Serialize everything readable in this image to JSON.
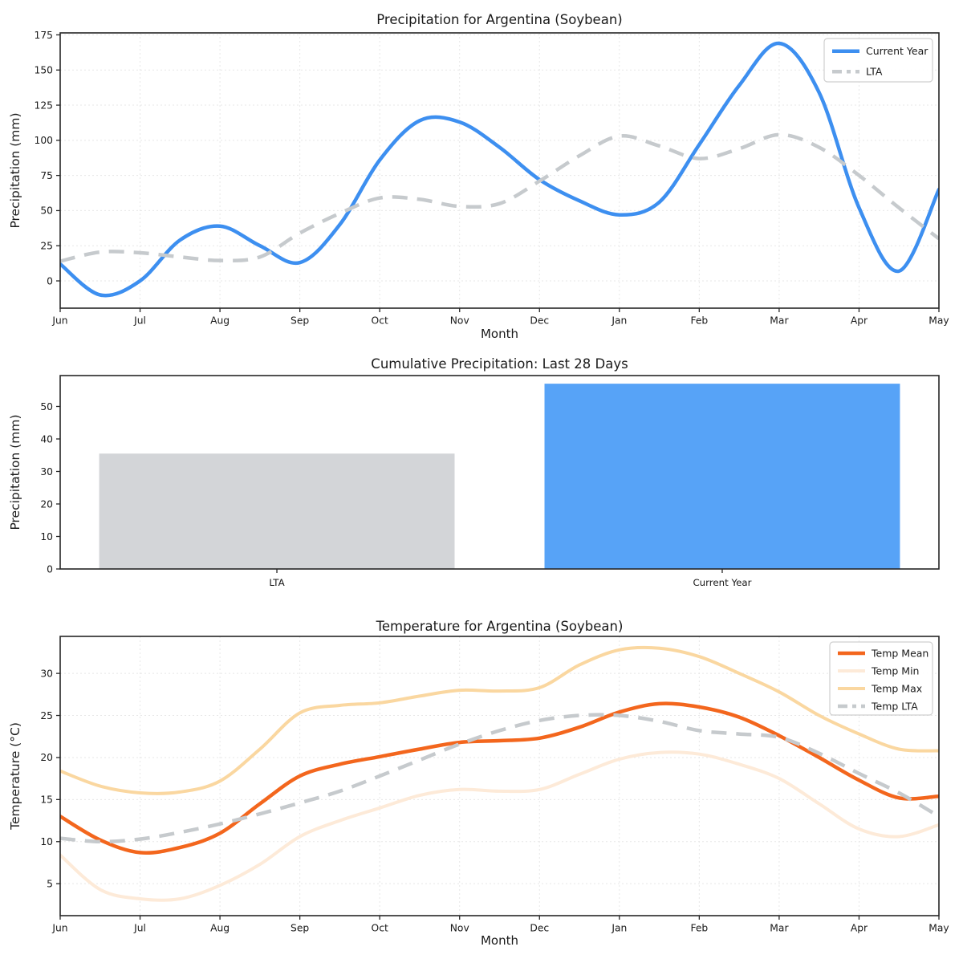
{
  "page": {
    "background": "#ffffff",
    "text_color": "#1a1a1a",
    "accent_blue": "#3d8ff0",
    "accent_bar_blue": "#57a3f7",
    "accent_orange": "#f3661d",
    "lta_gray": "#c6cacd",
    "bar_gray": "#d3d5d8"
  },
  "chart_data": [
    {
      "type": "line",
      "title": "Precipitation for Argentina (Soybean)",
      "xlabel": "Month",
      "ylabel": "Precipitation (mm)",
      "x_tick_labels": [
        "Jun",
        "Jul",
        "Aug",
        "Sep",
        "Oct",
        "Nov",
        "Dec",
        "Jan",
        "Feb",
        "Mar",
        "Apr",
        "May"
      ],
      "y_ticks": [
        0,
        25,
        50,
        75,
        100,
        125,
        150,
        175
      ],
      "ylim": [
        -19.4,
        176.4
      ],
      "x_step": 0.5,
      "grid": true,
      "legend_position": "top-right",
      "legend_labels": [
        "Current Year",
        "LTA"
      ],
      "series": [
        {
          "name": "Current Year",
          "color": "#3d8ff0",
          "dash": false,
          "width": 4.5,
          "values": [
            12,
            -10,
            0,
            29,
            39,
            25,
            13,
            40,
            86,
            114,
            113,
            95,
            72,
            57,
            47,
            56,
            97,
            139,
            169,
            134,
            52,
            7,
            65
          ]
        },
        {
          "name": "LTA",
          "color": "#c6cacd",
          "dash": true,
          "width": 4.5,
          "values": [
            14,
            20.5,
            20,
            17,
            14.5,
            17,
            34,
            48,
            59,
            58,
            53,
            55,
            71,
            89,
            103,
            96,
            87,
            94,
            104,
            95,
            75,
            52,
            30
          ]
        }
      ]
    },
    {
      "type": "bar",
      "title": "Cumulative Precipitation: Last 28 Days",
      "xlabel": "",
      "ylabel": "Precipitation (mm)",
      "y_ticks": [
        0,
        10,
        20,
        30,
        40,
        50
      ],
      "ylim": [
        0,
        59.5
      ],
      "grid": false,
      "categories": [
        "LTA",
        "Current Year"
      ],
      "values": [
        35.5,
        57
      ],
      "colors": [
        "#d3d5d8",
        "#57a3f7"
      ]
    },
    {
      "type": "line",
      "title": "Temperature for Argentina (Soybean)",
      "xlabel": "Month",
      "ylabel": "Temperature (°C)",
      "x_tick_labels": [
        "Jun",
        "Jul",
        "Aug",
        "Sep",
        "Oct",
        "Nov",
        "Dec",
        "Jan",
        "Feb",
        "Mar",
        "Apr",
        "May"
      ],
      "y_ticks": [
        5,
        10,
        15,
        20,
        25,
        30
      ],
      "ylim": [
        1.2,
        34.4
      ],
      "x_step": 0.5,
      "grid": true,
      "legend_position": "top-right",
      "legend_labels": [
        "Temp Mean",
        "Temp Min",
        "Temp Max",
        "Temp LTA"
      ],
      "series": [
        {
          "name": "Temp Mean",
          "color": "#f3661d",
          "dash": false,
          "width": 4.5,
          "values": [
            13,
            10.2,
            8.7,
            9.3,
            11,
            14.5,
            17.8,
            19.2,
            20.1,
            21,
            21.8,
            22,
            22.3,
            23.6,
            25.4,
            26.4,
            26,
            24.8,
            22.6,
            20,
            17.3,
            15.2,
            15.4
          ]
        },
        {
          "name": "Temp Min",
          "color": "#fdead8",
          "dash": false,
          "width": 4,
          "values": [
            8.4,
            4.3,
            3.2,
            3.2,
            4.8,
            7.3,
            10.6,
            12.5,
            14,
            15.5,
            16.2,
            16,
            16.2,
            18,
            19.8,
            20.6,
            20.4,
            19.2,
            17.5,
            14.5,
            11.5,
            10.6,
            12
          ]
        },
        {
          "name": "Temp Max",
          "color": "#fad7a0",
          "dash": false,
          "width": 4,
          "values": [
            18.4,
            16.6,
            15.8,
            15.9,
            17.2,
            21,
            25.3,
            26.2,
            26.5,
            27.3,
            28,
            27.9,
            28.3,
            31,
            32.8,
            33,
            32,
            30,
            27.8,
            25,
            22.8,
            21,
            20.8
          ]
        },
        {
          "name": "Temp LTA",
          "color": "#c6cacd",
          "dash": true,
          "width": 4.5,
          "values": [
            10.4,
            10,
            10.3,
            11.1,
            12.1,
            13.3,
            14.6,
            16,
            17.8,
            19.7,
            21.6,
            23.2,
            24.4,
            25,
            25,
            24.3,
            23.2,
            22.8,
            22.4,
            20.5,
            18.1,
            15.8,
            13
          ]
        }
      ]
    }
  ]
}
